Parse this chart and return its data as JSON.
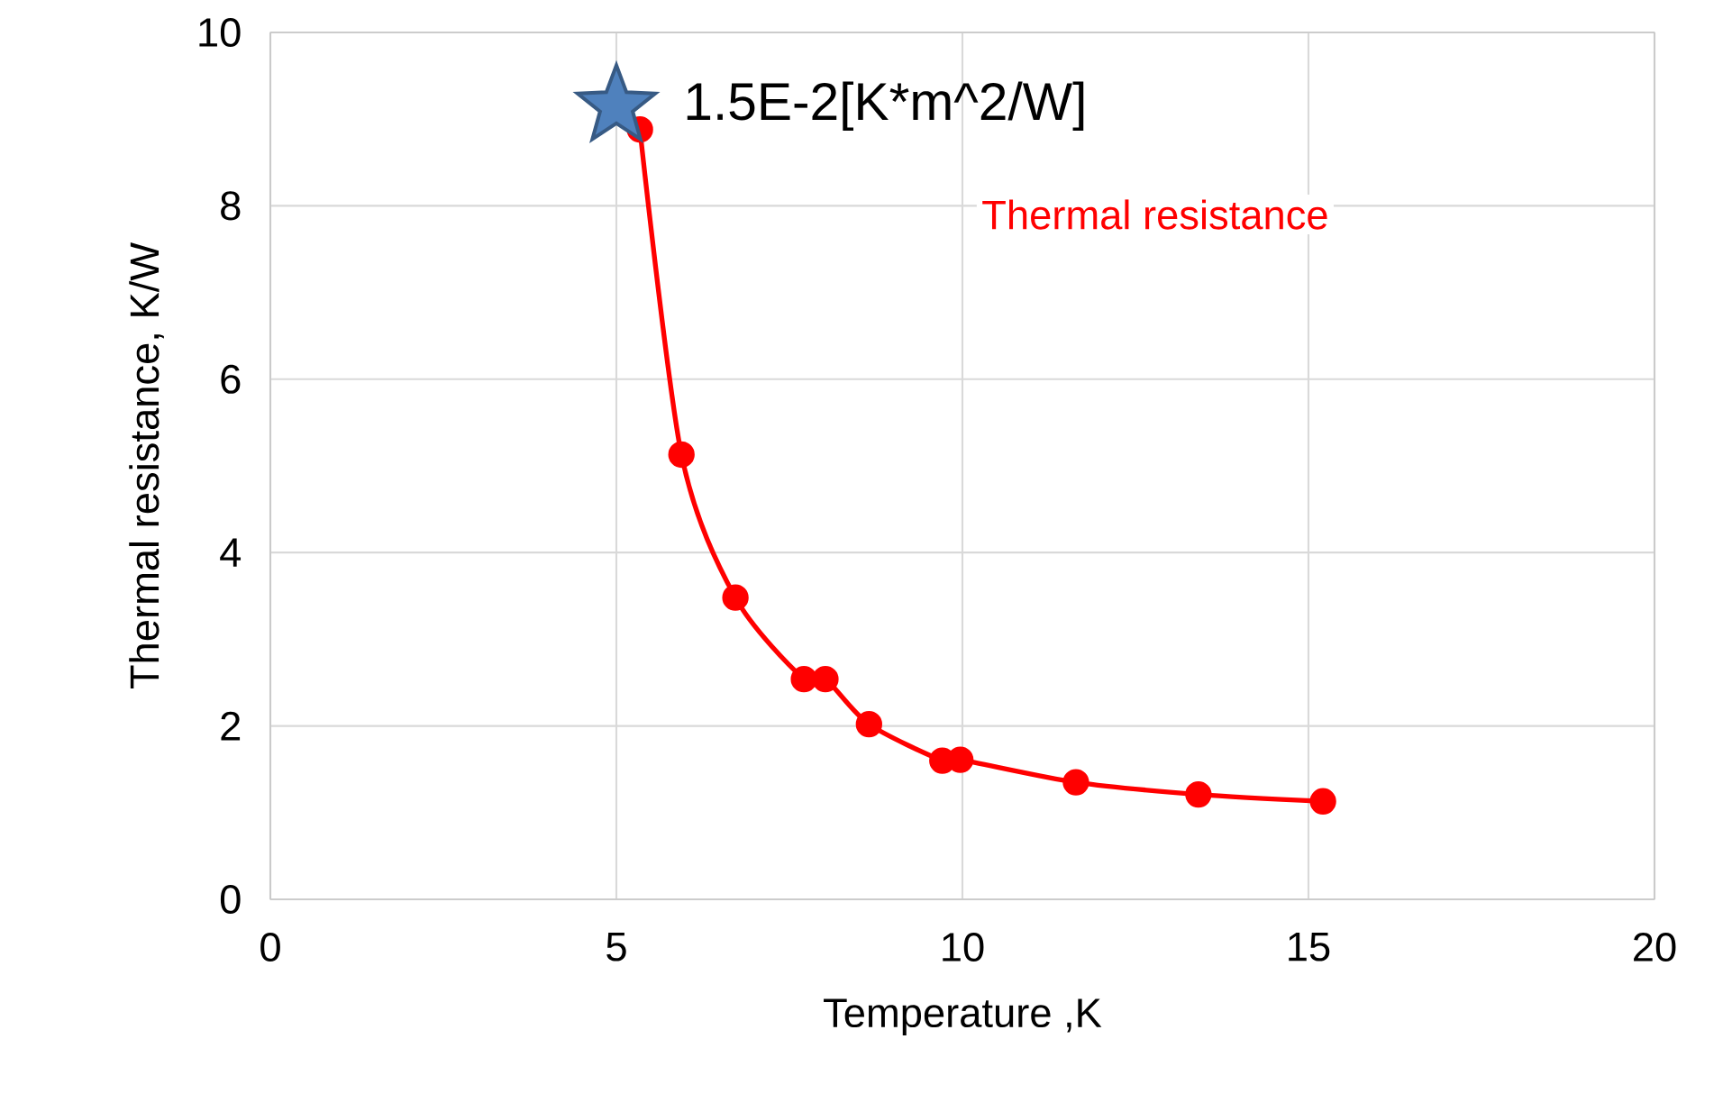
{
  "chart_data": {
    "type": "line",
    "xlabel": "Temperature ,K",
    "ylabel": "Thermal resistance, K/W",
    "xlim": [
      0,
      20
    ],
    "xticks": [
      0,
      5,
      10,
      15,
      20
    ],
    "ylim": [
      0,
      10
    ],
    "yticks": [
      0,
      2,
      4,
      6,
      8,
      10
    ],
    "grid": true,
    "legend": false,
    "series": [
      {
        "name": "Thermal resistance",
        "color": "#ff0000",
        "marker": "circle",
        "x": [
          5.34,
          5.94,
          6.72,
          7.71,
          8.02,
          8.65,
          9.71,
          9.97,
          11.64,
          13.41,
          15.21
        ],
        "values": [
          8.88,
          5.13,
          3.48,
          2.54,
          2.54,
          2.02,
          1.6,
          1.61,
          1.35,
          1.21,
          1.13
        ]
      },
      {
        "type": "scatter",
        "color": "#4f81bd",
        "marker": "star",
        "x": [
          5.0
        ],
        "values": [
          9.15
        ]
      }
    ],
    "annotations": [
      {
        "text": "1.5E-2[K*m^2/W]",
        "x": 5.0,
        "y": 9.15
      }
    ]
  }
}
